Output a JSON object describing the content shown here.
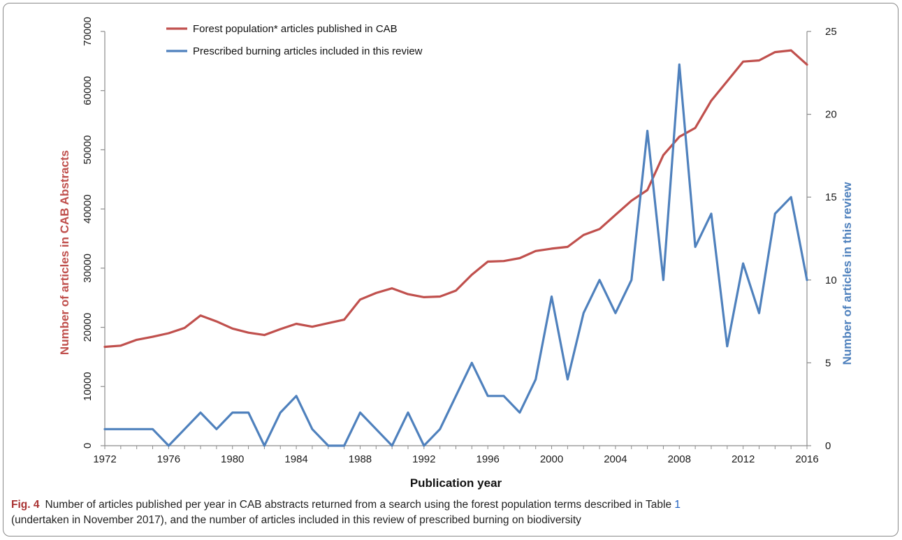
{
  "chart_data": {
    "type": "line",
    "x": [
      1972,
      1973,
      1974,
      1975,
      1976,
      1977,
      1978,
      1979,
      1980,
      1981,
      1982,
      1983,
      1984,
      1985,
      1986,
      1987,
      1988,
      1989,
      1990,
      1991,
      1992,
      1993,
      1994,
      1995,
      1996,
      1997,
      1998,
      1999,
      2000,
      2001,
      2002,
      2003,
      2004,
      2005,
      2006,
      2007,
      2008,
      2009,
      2010,
      2011,
      2012,
      2013,
      2014,
      2015,
      2016
    ],
    "xlabel": "Publication year",
    "xticks": [
      "1972",
      "1976",
      "1980",
      "1984",
      "1988",
      "1992",
      "1996",
      "2000",
      "2004",
      "2008",
      "2012",
      "2016"
    ],
    "xlim": [
      1972,
      2016
    ],
    "ylabel_left": "Number of articles in CAB Abstracts",
    "ylabel_right": "Number of articles in this review",
    "ylim_left": [
      0,
      70000
    ],
    "ylim_right": [
      0,
      25
    ],
    "yticks_left": [
      "0",
      "10000",
      "20000",
      "30000",
      "40000",
      "50000",
      "60000",
      "70000"
    ],
    "yticks_right": [
      "0",
      "5",
      "10",
      "15",
      "20",
      "25"
    ],
    "legend_position": "top-left",
    "grid": false,
    "series": [
      {
        "name": "Forest population* articles published in CAB",
        "axis": "left",
        "color": "#c0504d",
        "values": [
          16700,
          16900,
          17900,
          18400,
          19000,
          19900,
          22000,
          21000,
          19800,
          19100,
          18700,
          19700,
          20600,
          20100,
          20700,
          21300,
          24700,
          25800,
          26600,
          25600,
          25100,
          25200,
          26200,
          28900,
          31100,
          31200,
          31700,
          32900,
          33300,
          33600,
          35600,
          36600,
          39000,
          41400,
          43200,
          49100,
          52200,
          53700,
          58300,
          61600,
          64900,
          65100,
          66500,
          66800,
          64400
        ]
      },
      {
        "name": "Prescribed burning articles included in this review",
        "axis": "right",
        "color": "#4f81bd",
        "values": [
          1,
          1,
          1,
          1,
          0,
          1,
          2,
          1,
          2,
          2,
          0,
          2,
          3,
          1,
          0,
          0,
          2,
          1,
          0,
          2,
          0,
          1,
          3,
          5,
          3,
          3,
          2,
          4,
          9,
          4,
          8,
          10,
          8,
          10,
          19,
          10,
          23,
          12,
          14,
          6,
          11,
          8,
          14,
          15,
          10
        ]
      }
    ]
  },
  "caption": {
    "label": "Fig. 4",
    "text_before_ref": "Number of articles published per year in CAB abstracts returned from a search using the forest population terms described in Table",
    "table_ref": "1",
    "text_after_ref": "(undertaken in November 2017), and the number of articles included in this review of prescribed burning on biodiversity"
  },
  "colors": {
    "left_axis_title": "#c0504d",
    "right_axis_title": "#4f81bd",
    "axis_line": "#8c8c8c",
    "fig_label": "#aa3333",
    "table_ref": "#2060c0"
  }
}
